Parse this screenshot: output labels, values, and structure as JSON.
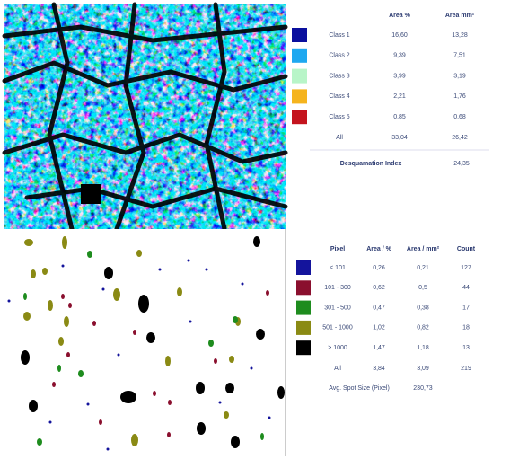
{
  "top_table": {
    "header": [
      "Area %",
      "Area mm²"
    ],
    "rows": [
      {
        "label": "Class 1",
        "color": "#0a0f9e",
        "area_pct": "16,60",
        "area_mm2": "13,28"
      },
      {
        "label": "Class 2",
        "color": "#1ea8f0",
        "area_pct": "9,39",
        "area_mm2": "7,51"
      },
      {
        "label": "Class 3",
        "color": "#b8f5c8",
        "area_pct": "3,99",
        "area_mm2": "3,19"
      },
      {
        "label": "Class 4",
        "color": "#f5b41e",
        "area_pct": "2,21",
        "area_mm2": "1,76"
      },
      {
        "label": "Class 5",
        "color": "#c4141e",
        "area_pct": "0,85",
        "area_mm2": "0,68"
      }
    ],
    "total": {
      "label": "All",
      "area_pct": "33,04",
      "area_mm2": "26,42"
    },
    "index": {
      "label": "Desquamation Index",
      "value": "24,35"
    }
  },
  "bottom_table": {
    "header": [
      "Pixel",
      "Area / %",
      "Area / mm²",
      "Count"
    ],
    "rows": [
      {
        "label": "< 101",
        "color": "#14149c",
        "area_pct": "0,26",
        "area_mm2": "0,21",
        "count": "127"
      },
      {
        "label": "101 - 300",
        "color": "#8a0f2e",
        "area_pct": "0,62",
        "area_mm2": "0,5",
        "count": "44"
      },
      {
        "label": "301 - 500",
        "color": "#1e8c1e",
        "area_pct": "0,47",
        "area_mm2": "0,38",
        "count": "17"
      },
      {
        "label": "501 - 1000",
        "color": "#8a8a14",
        "area_pct": "1,02",
        "area_mm2": "0,82",
        "count": "18"
      },
      {
        "label": "> 1000",
        "color": "#000000",
        "area_pct": "1,47",
        "area_mm2": "1,18",
        "count": "13"
      }
    ],
    "total": {
      "label": "All",
      "area_pct": "3,84",
      "area_mm2": "3,09",
      "count": "219"
    },
    "avg": {
      "label": "Avg. Spot Size (Pixel)",
      "value": "230,73"
    }
  }
}
